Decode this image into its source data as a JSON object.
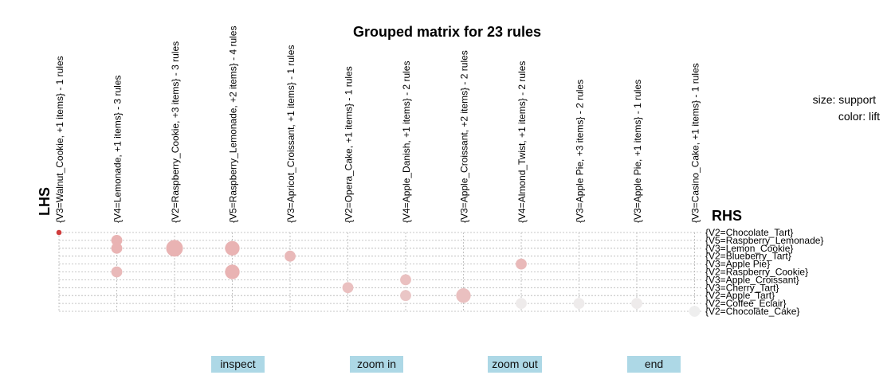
{
  "chart_data": {
    "type": "scatter",
    "title": "Grouped matrix for 23 rules",
    "xlabel": "LHS",
    "ylabel": "RHS",
    "legend": [
      "size: support",
      "color: lift"
    ],
    "lhs_groups": [
      "{V3=Walnut_Cookie, +1 items} - 1 rules",
      "{V4=Lemonade, +1 items} - 3 rules",
      "{V2=Raspberry_Cookie, +3 items} - 3 rules",
      "{V5=Raspberry_Lemonade, +2 items} - 4 rules",
      "{V3=Apricot_Croissant, +1 items} - 1 rules",
      "{V2=Opera_Cake, +1 items} - 1 rules",
      "{V4=Apple_Danish, +1 items} - 2 rules",
      "{V3=Apple_Croissant, +2 items} - 2 rules",
      "{V4=Almond_Twist, +1 items} - 2 rules",
      "{V3=Apple Pie, +3 items} - 2 rules",
      "{V3=Apple Pie, +1 items} - 1 rules",
      "{V3=Casino_Cake, +1 items} - 1 rules"
    ],
    "rhs_items": [
      "{V2=Chocolate_Tart}",
      "{V5=Raspberry_Lemonade}",
      "{V3=Lemon_Cookie}",
      "{V2=Blueberry_Tart}",
      "{V3=Apple Pie}",
      "{V2=Raspberry_Cookie}",
      "{V3=Apple_Croissant}",
      "{V3=Cherry_Tart}",
      "{V2=Apple_Tart}",
      "{V2=Coffee_Eclair}",
      "{V2=Chocolate_Cake}"
    ],
    "points": [
      {
        "lhs": 0,
        "rhs": 0,
        "support": 0.2,
        "lift": 1.0
      },
      {
        "lhs": 1,
        "rhs": 1,
        "support": 0.6,
        "lift": 0.45
      },
      {
        "lhs": 1,
        "rhs": 2,
        "support": 0.6,
        "lift": 0.45
      },
      {
        "lhs": 1,
        "rhs": 5,
        "support": 0.6,
        "lift": 0.4
      },
      {
        "lhs": 2,
        "rhs": 2,
        "support": 1.0,
        "lift": 0.45
      },
      {
        "lhs": 3,
        "rhs": 2,
        "support": 0.85,
        "lift": 0.45
      },
      {
        "lhs": 3,
        "rhs": 5,
        "support": 0.85,
        "lift": 0.45
      },
      {
        "lhs": 4,
        "rhs": 3,
        "support": 0.6,
        "lift": 0.4
      },
      {
        "lhs": 5,
        "rhs": 7,
        "support": 0.6,
        "lift": 0.35
      },
      {
        "lhs": 6,
        "rhs": 6,
        "support": 0.6,
        "lift": 0.35
      },
      {
        "lhs": 6,
        "rhs": 8,
        "support": 0.6,
        "lift": 0.3
      },
      {
        "lhs": 7,
        "rhs": 8,
        "support": 0.85,
        "lift": 0.35
      },
      {
        "lhs": 8,
        "rhs": 4,
        "support": 0.6,
        "lift": 0.4
      },
      {
        "lhs": 8,
        "rhs": 9,
        "support": 0.6,
        "lift": 0.02
      },
      {
        "lhs": 9,
        "rhs": 9,
        "support": 0.6,
        "lift": 0.02
      },
      {
        "lhs": 10,
        "rhs": 9,
        "support": 0.6,
        "lift": 0.02
      },
      {
        "lhs": 11,
        "rhs": 10,
        "support": 0.6,
        "lift": 0.0
      }
    ],
    "grid": true
  },
  "buttons": {
    "inspect": "inspect",
    "zoom_in": "zoom in",
    "zoom_out": "zoom out",
    "end": "end"
  }
}
